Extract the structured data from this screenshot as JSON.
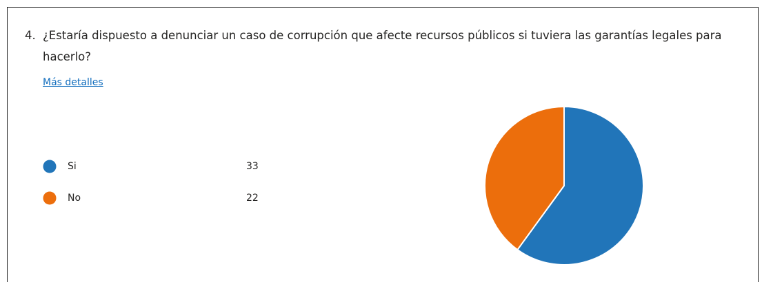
{
  "question_number": "4.",
  "link": "Más detalles",
  "chart_data": {
    "type": "pie",
    "title": "¿Estaría dispuesto a denunciar un caso de corrupción que afecte recursos públicos si tuviera las garantías legales para hacerlo?",
    "categories": [
      "Si",
      "No"
    ],
    "values": [
      33,
      22
    ],
    "colors": [
      "#2175b9",
      "#ec6e0c"
    ]
  }
}
